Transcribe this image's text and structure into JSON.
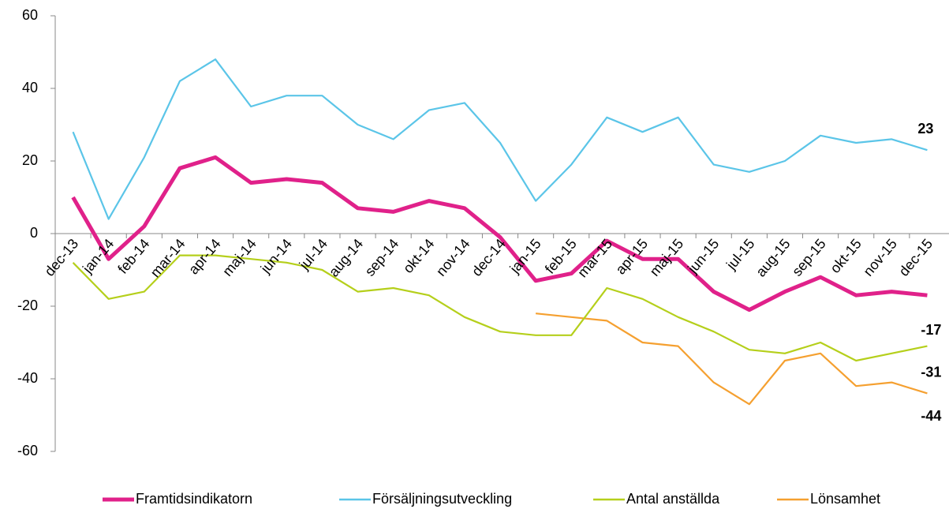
{
  "chart_data": {
    "type": "line",
    "categories": [
      "dec-13",
      "jan-14",
      "feb-14",
      "mar-14",
      "apr-14",
      "maj-14",
      "jun-14",
      "jul-14",
      "aug-14",
      "sep-14",
      "okt-14",
      "nov-14",
      "dec-14",
      "jan-15",
      "feb-15",
      "mar-15",
      "apr-15",
      "maj-15",
      "jun-15",
      "jul-15",
      "aug-15",
      "sep-15",
      "okt-15",
      "nov-15",
      "dec-15"
    ],
    "series": [
      {
        "name": "Framtidsindikatorn",
        "color": "#e0218a",
        "values": [
          10,
          -7,
          2,
          18,
          21,
          14,
          15,
          14,
          7,
          6,
          9,
          7,
          -1,
          -13,
          -11,
          -2,
          -7,
          -7,
          -16,
          -21,
          -16,
          -12,
          -17,
          -16,
          -17
        ]
      },
      {
        "name": "Försäljningsutveckling",
        "color": "#5bc5e8",
        "values": [
          28,
          4,
          21,
          42,
          48,
          35,
          38,
          38,
          30,
          26,
          34,
          36,
          25,
          9,
          19,
          32,
          28,
          32,
          19,
          17,
          20,
          27,
          25,
          26,
          23
        ]
      },
      {
        "name": "Antal anställda",
        "color": "#b5cf1b",
        "values": [
          -8,
          -18,
          -16,
          -6,
          -6,
          -7,
          -8,
          -10,
          -16,
          -15,
          -17,
          -23,
          -27,
          -28,
          -28,
          -15,
          -18,
          -23,
          -27,
          -32,
          -33,
          -30,
          -35,
          -33,
          -31
        ]
      },
      {
        "name": "Lönsamhet",
        "color": "#f5a030",
        "values": [
          null,
          null,
          null,
          null,
          null,
          null,
          null,
          null,
          null,
          null,
          null,
          null,
          null,
          -22,
          -23,
          -24,
          -30,
          -31,
          -41,
          -47,
          -35,
          -33,
          -42,
          -41,
          -44
        ]
      }
    ],
    "ylim": [
      -60,
      60
    ],
    "yticks": [
      -60,
      -40,
      -20,
      0,
      20,
      40,
      60
    ],
    "grid": false,
    "legend": "bottom"
  }
}
